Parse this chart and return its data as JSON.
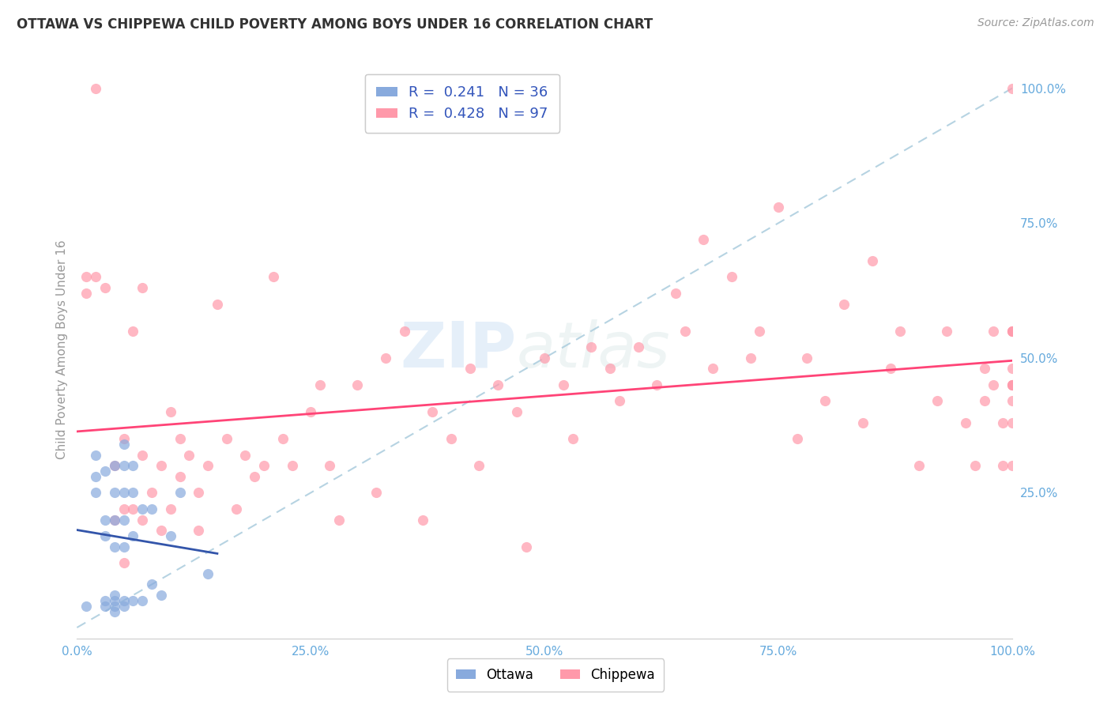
{
  "title": "OTTAWA VS CHIPPEWA CHILD POVERTY AMONG BOYS UNDER 16 CORRELATION CHART",
  "source": "Source: ZipAtlas.com",
  "ylabel": "Child Poverty Among Boys Under 16",
  "watermark_zip": "ZIP",
  "watermark_atlas": "atlas",
  "ottawa_R": 0.241,
  "ottawa_N": 36,
  "chippewa_R": 0.428,
  "chippewa_N": 97,
  "xlim": [
    0,
    1.0
  ],
  "ylim": [
    -0.02,
    1.05
  ],
  "xticks": [
    0.0,
    0.25,
    0.5,
    0.75,
    1.0
  ],
  "yticks_right": [
    0.25,
    0.5,
    0.75,
    1.0
  ],
  "xtick_labels": [
    "0.0%",
    "25.0%",
    "50.0%",
    "75.0%",
    "100.0%"
  ],
  "ytick_labels_right": [
    "25.0%",
    "50.0%",
    "75.0%",
    "100.0%"
  ],
  "color_ottawa": "#88AADD",
  "color_chippewa": "#FF99AA",
  "color_ottawa_line": "#3355AA",
  "color_chippewa_line": "#FF4477",
  "color_diagonal": "#AACCDD",
  "background_color": "#FFFFFF",
  "grid_color": "#DDDDEE",
  "tick_color": "#66AADD",
  "ottawa_x": [
    0.01,
    0.02,
    0.02,
    0.02,
    0.03,
    0.03,
    0.03,
    0.03,
    0.03,
    0.04,
    0.04,
    0.04,
    0.04,
    0.04,
    0.04,
    0.04,
    0.04,
    0.05,
    0.05,
    0.05,
    0.05,
    0.05,
    0.05,
    0.05,
    0.06,
    0.06,
    0.06,
    0.06,
    0.07,
    0.07,
    0.08,
    0.08,
    0.09,
    0.1,
    0.11,
    0.14
  ],
  "ottawa_y": [
    0.04,
    0.25,
    0.28,
    0.32,
    0.04,
    0.05,
    0.17,
    0.2,
    0.29,
    0.03,
    0.04,
    0.05,
    0.06,
    0.15,
    0.2,
    0.25,
    0.3,
    0.04,
    0.05,
    0.15,
    0.2,
    0.25,
    0.3,
    0.34,
    0.05,
    0.17,
    0.25,
    0.3,
    0.05,
    0.22,
    0.08,
    0.22,
    0.06,
    0.17,
    0.25,
    0.1
  ],
  "chippewa_x": [
    0.01,
    0.01,
    0.02,
    0.02,
    0.03,
    0.04,
    0.04,
    0.05,
    0.05,
    0.05,
    0.06,
    0.06,
    0.07,
    0.07,
    0.07,
    0.08,
    0.09,
    0.09,
    0.1,
    0.1,
    0.11,
    0.11,
    0.12,
    0.13,
    0.13,
    0.14,
    0.15,
    0.16,
    0.17,
    0.18,
    0.19,
    0.2,
    0.21,
    0.22,
    0.23,
    0.25,
    0.26,
    0.27,
    0.28,
    0.3,
    0.32,
    0.33,
    0.35,
    0.37,
    0.38,
    0.4,
    0.42,
    0.43,
    0.45,
    0.47,
    0.48,
    0.5,
    0.52,
    0.53,
    0.55,
    0.57,
    0.58,
    0.6,
    0.62,
    0.64,
    0.65,
    0.67,
    0.68,
    0.7,
    0.72,
    0.73,
    0.75,
    0.77,
    0.78,
    0.8,
    0.82,
    0.84,
    0.85,
    0.87,
    0.88,
    0.9,
    0.92,
    0.93,
    0.95,
    0.96,
    0.97,
    0.97,
    0.98,
    0.98,
    0.99,
    0.99,
    1.0,
    1.0,
    1.0,
    1.0,
    1.0,
    1.0,
    1.0,
    1.0,
    1.0,
    1.0,
    1.0
  ],
  "chippewa_y": [
    0.62,
    0.65,
    0.65,
    1.0,
    0.63,
    0.2,
    0.3,
    0.12,
    0.22,
    0.35,
    0.22,
    0.55,
    0.2,
    0.32,
    0.63,
    0.25,
    0.18,
    0.3,
    0.22,
    0.4,
    0.28,
    0.35,
    0.32,
    0.18,
    0.25,
    0.3,
    0.6,
    0.35,
    0.22,
    0.32,
    0.28,
    0.3,
    0.65,
    0.35,
    0.3,
    0.4,
    0.45,
    0.3,
    0.2,
    0.45,
    0.25,
    0.5,
    0.55,
    0.2,
    0.4,
    0.35,
    0.48,
    0.3,
    0.45,
    0.4,
    0.15,
    0.5,
    0.45,
    0.35,
    0.52,
    0.48,
    0.42,
    0.52,
    0.45,
    0.62,
    0.55,
    0.72,
    0.48,
    0.65,
    0.5,
    0.55,
    0.78,
    0.35,
    0.5,
    0.42,
    0.6,
    0.38,
    0.68,
    0.48,
    0.55,
    0.3,
    0.42,
    0.55,
    0.38,
    0.3,
    0.42,
    0.48,
    0.45,
    0.55,
    0.3,
    0.38,
    0.45,
    0.55,
    0.3,
    0.38,
    0.42,
    0.48,
    0.55,
    0.45,
    0.55,
    1.0,
    0.45
  ]
}
